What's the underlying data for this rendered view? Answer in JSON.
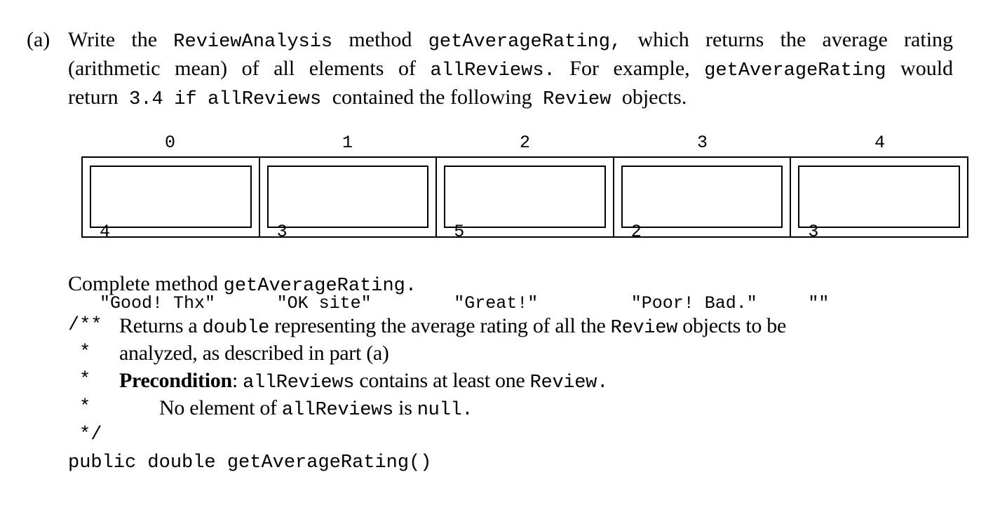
{
  "part": {
    "label": "(a)",
    "intro": {
      "line1": {
        "w1": "Write the",
        "c1": "ReviewAnalysis",
        "w2": "method",
        "c2": "getAverageRating,",
        "w3": "which returns the average rating"
      },
      "line2": {
        "w1": "(arithmetic mean) of all elements of",
        "c1": "allReviews.",
        "w2": "For example,",
        "c2": "getAverageRating",
        "w3": "would"
      },
      "line3": {
        "w1": "return",
        "c1": "3.4",
        "w2": "if",
        "c2": "allReviews",
        "w3": "contained the following",
        "c3": "Review",
        "w4": "objects."
      }
    }
  },
  "array": {
    "indices": [
      "0",
      "1",
      "2",
      "3",
      "4"
    ],
    "elements": [
      {
        "rating": "4",
        "comment": "\"Good! Thx\""
      },
      {
        "rating": "3",
        "comment": "\"OK site\""
      },
      {
        "rating": "5",
        "comment": "\"Great!\""
      },
      {
        "rating": "2",
        "comment": "\"Poor! Bad.\""
      },
      {
        "rating": "3",
        "comment": "\"\""
      }
    ]
  },
  "complete": {
    "text": "Complete method",
    "method": "getAverageRating."
  },
  "doc": {
    "open": "/**",
    "star": "*",
    "close": "*/",
    "line1": {
      "t1": "Returns a",
      "c1": "double",
      "t2": "representing the average rating of all the",
      "c2": "Review",
      "t3": "objects to be"
    },
    "line2": {
      "t1": "analyzed, as described in part (a)"
    },
    "line3": {
      "b1": "Precondition",
      "t1": ":",
      "c1": "allReviews",
      "t2": "contains at least one",
      "c2": "Review."
    },
    "line4": {
      "t1": "No element of",
      "c1": "allReviews",
      "t2": "is",
      "c2": "null."
    }
  },
  "signature": "public double getAverageRating()"
}
